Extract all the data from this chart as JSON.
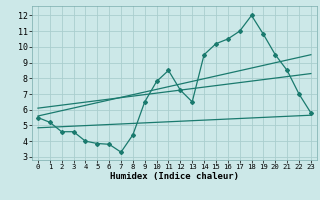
{
  "xlabel": "Humidex (Indice chaleur)",
  "bg_color": "#cce8e8",
  "line_color": "#1a7a6e",
  "grid_color": "#aacece",
  "xlim": [
    -0.5,
    23.5
  ],
  "ylim": [
    2.8,
    12.6
  ],
  "xticks": [
    0,
    1,
    2,
    3,
    4,
    5,
    6,
    7,
    8,
    9,
    10,
    11,
    12,
    13,
    14,
    15,
    16,
    17,
    18,
    19,
    20,
    21,
    22,
    23
  ],
  "yticks": [
    3,
    4,
    5,
    6,
    7,
    8,
    9,
    10,
    11,
    12
  ],
  "main_x": [
    0,
    1,
    2,
    3,
    4,
    5,
    6,
    7,
    8,
    9,
    10,
    11,
    12,
    13,
    14,
    15,
    16,
    17,
    18,
    19,
    20,
    21,
    22,
    23
  ],
  "main_y": [
    5.5,
    5.2,
    4.6,
    4.6,
    4.0,
    3.85,
    3.8,
    3.3,
    4.4,
    6.5,
    7.8,
    8.5,
    7.25,
    6.5,
    9.5,
    10.2,
    10.5,
    11.0,
    12.0,
    10.8,
    9.5,
    8.5,
    7.0,
    5.8
  ],
  "trend1": {
    "x": [
      0,
      23
    ],
    "y": [
      5.6,
      9.5
    ]
  },
  "trend2": {
    "x": [
      0,
      23
    ],
    "y": [
      6.1,
      8.3
    ]
  },
  "trend3": {
    "x": [
      0,
      23
    ],
    "y": [
      4.85,
      5.65
    ]
  }
}
